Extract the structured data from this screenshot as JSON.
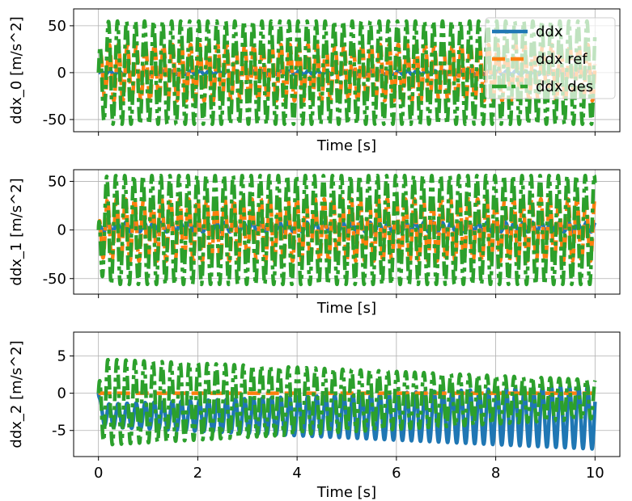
{
  "chart_data": [
    {
      "type": "line",
      "xlabel": "Time [s]",
      "ylabel": "ddx_0 [m/s^2]",
      "xlim": [
        -0.5,
        10.5
      ],
      "ylim": [
        -63,
        68
      ],
      "yticks": [
        -50,
        0,
        50
      ],
      "xticks": [
        0,
        2,
        4,
        6,
        8,
        10
      ],
      "show_xticklabels": false,
      "grid": true,
      "legend_position": "top-right",
      "series": [
        {
          "name": "ddx",
          "color": "#1f77b4",
          "style": "solid",
          "t": [
            0,
            10
          ],
          "offset": [
            0,
            0
          ],
          "amplitude": [
            2,
            2
          ],
          "freq": 5.5,
          "phase": 0.0
        },
        {
          "name": "ddx ref",
          "color": "#ff7f0e",
          "style": "dashed",
          "t": [
            0,
            10
          ],
          "offset": [
            0,
            0
          ],
          "amplitude": [
            30,
            30
          ],
          "freq": 5.5,
          "phase": 0.3
        },
        {
          "name": "ddx des",
          "color": "#2ca02c",
          "style": "dashdot",
          "t": [
            0,
            10
          ],
          "offset": [
            0,
            0
          ],
          "amplitude": [
            55,
            55
          ],
          "freq": 5.5,
          "phase": 0.9
        }
      ]
    },
    {
      "type": "line",
      "xlabel": "Time [s]",
      "ylabel": "ddx_1 [m/s^2]",
      "xlim": [
        -0.5,
        10.5
      ],
      "ylim": [
        -66,
        62
      ],
      "yticks": [
        -50,
        0,
        50
      ],
      "xticks": [
        0,
        2,
        4,
        6,
        8,
        10
      ],
      "show_xticklabels": false,
      "grid": true,
      "series": [
        {
          "name": "ddx",
          "color": "#1f77b4",
          "style": "solid",
          "t": [
            0,
            10
          ],
          "offset": [
            3,
            3
          ],
          "amplitude": [
            5,
            5
          ],
          "freq": 5.5,
          "phase": 1.2
        },
        {
          "name": "ddx ref",
          "color": "#ff7f0e",
          "style": "dashed",
          "t": [
            0,
            10
          ],
          "offset": [
            0,
            0
          ],
          "amplitude": [
            32,
            32
          ],
          "freq": 5.5,
          "phase": 1.6
        },
        {
          "name": "ddx des",
          "color": "#2ca02c",
          "style": "dashdot",
          "t": [
            0,
            10
          ],
          "offset": [
            0,
            0
          ],
          "amplitude": [
            56,
            56
          ],
          "freq": 5.5,
          "phase": 2.1
        }
      ]
    },
    {
      "type": "line",
      "xlabel": "Time [s]",
      "ylabel": "ddx_2 [m/s^2]",
      "xlim": [
        -0.5,
        10.5
      ],
      "ylim": [
        -8.5,
        8.2
      ],
      "yticks": [
        -5,
        0,
        5
      ],
      "xticks": [
        0,
        2,
        4,
        6,
        8,
        10
      ],
      "show_xticklabels": true,
      "grid": true,
      "series": [
        {
          "name": "ddx",
          "color": "#1f77b4",
          "style": "solid",
          "t": [
            0,
            10
          ],
          "offset": [
            -3,
            -3.2
          ],
          "amplitude": [
            1.5,
            4.3
          ],
          "freq": 5.5,
          "phase": 0.5
        },
        {
          "name": "ddx ref",
          "color": "#ff7f0e",
          "style": "dashed",
          "t": [
            0,
            10
          ],
          "offset": [
            0,
            0
          ],
          "amplitude": [
            0,
            0
          ],
          "freq": 5.5,
          "phase": 0
        },
        {
          "name": "ddx des",
          "color": "#2ca02c",
          "style": "dashdot",
          "t": [
            0,
            10
          ],
          "offset": [
            -1.2,
            -0.8
          ],
          "amplitude": [
            5.8,
            2.6
          ],
          "freq": 5.5,
          "phase": 1.3
        }
      ]
    }
  ]
}
